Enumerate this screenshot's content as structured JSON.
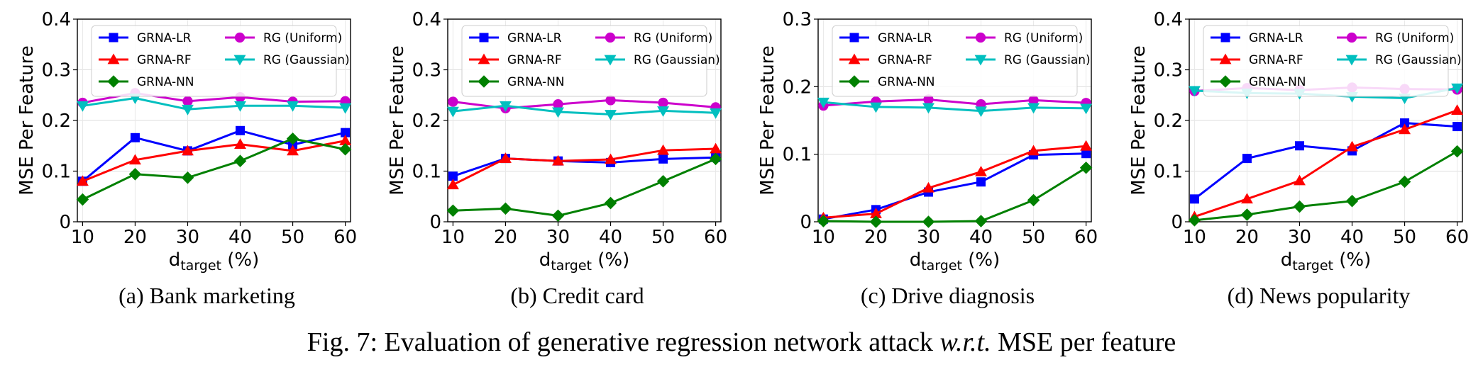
{
  "figure": {
    "caption": {
      "prefix": "Fig. 7: Evaluation of generative regression network attack ",
      "italic": "w.r.t.",
      "suffix": " MSE per feature"
    }
  },
  "chart_data": [
    {
      "type": "line",
      "caption": "(a) Bank marketing",
      "ylabel": "MSE Per Feature",
      "xlabel_main": "d",
      "xlabel_sub": "target",
      "xlabel_suffix": " (%)",
      "x": [
        10,
        20,
        30,
        40,
        50,
        60
      ],
      "xlim": [
        9,
        61
      ],
      "ylim": [
        0,
        0.4
      ],
      "yticks": [
        0,
        0.1,
        0.2,
        0.3,
        0.4
      ],
      "yticklabels": [
        "0",
        "0.1",
        "0.2",
        "0.3",
        "0.4"
      ],
      "grid": true,
      "legend": "top",
      "series": [
        {
          "name": "GRNA-LR",
          "color": "#0000ff",
          "marker": "square",
          "values": [
            0.08,
            0.166,
            0.14,
            0.18,
            0.152,
            0.176
          ]
        },
        {
          "name": "GRNA-RF",
          "color": "#ff0000",
          "marker": "triangle-up",
          "values": [
            0.08,
            0.122,
            0.14,
            0.153,
            0.14,
            0.16
          ]
        },
        {
          "name": "GRNA-NN",
          "color": "#008000",
          "marker": "diamond",
          "values": [
            0.044,
            0.094,
            0.087,
            0.12,
            0.164,
            0.143
          ]
        },
        {
          "name": "RG (Uniform)",
          "color": "#cc00cc",
          "marker": "circle",
          "values": [
            0.235,
            0.254,
            0.238,
            0.246,
            0.237,
            0.238
          ]
        },
        {
          "name": "RG (Gaussian)",
          "color": "#00bfbf",
          "marker": "triangle-down",
          "values": [
            0.229,
            0.244,
            0.222,
            0.229,
            0.229,
            0.225
          ]
        }
      ]
    },
    {
      "type": "line",
      "caption": "(b) Credit card",
      "ylabel": "MSE Per Feature",
      "xlabel_main": "d",
      "xlabel_sub": "target",
      "xlabel_suffix": " (%)",
      "x": [
        10,
        20,
        30,
        40,
        50,
        60
      ],
      "xlim": [
        9,
        61
      ],
      "ylim": [
        0,
        0.4
      ],
      "yticks": [
        0,
        0.1,
        0.2,
        0.3,
        0.4
      ],
      "yticklabels": [
        "0",
        "0.1",
        "0.2",
        "0.3",
        "0.4"
      ],
      "grid": true,
      "legend": "top",
      "series": [
        {
          "name": "GRNA-LR",
          "color": "#0000ff",
          "marker": "square",
          "values": [
            0.09,
            0.125,
            0.12,
            0.117,
            0.124,
            0.127
          ]
        },
        {
          "name": "GRNA-RF",
          "color": "#ff0000",
          "marker": "triangle-up",
          "values": [
            0.073,
            0.125,
            0.12,
            0.123,
            0.141,
            0.144
          ]
        },
        {
          "name": "GRNA-NN",
          "color": "#008000",
          "marker": "diamond",
          "values": [
            0.022,
            0.026,
            0.012,
            0.037,
            0.08,
            0.124
          ]
        },
        {
          "name": "RG (Uniform)",
          "color": "#cc00cc",
          "marker": "circle",
          "values": [
            0.237,
            0.224,
            0.232,
            0.24,
            0.235,
            0.226
          ]
        },
        {
          "name": "RG (Gaussian)",
          "color": "#00bfbf",
          "marker": "triangle-down",
          "values": [
            0.218,
            0.229,
            0.217,
            0.212,
            0.219,
            0.215
          ]
        }
      ]
    },
    {
      "type": "line",
      "caption": "(c) Drive diagnosis",
      "ylabel": "MSE Per Feature",
      "xlabel_main": "d",
      "xlabel_sub": "target",
      "xlabel_suffix": " (%)",
      "x": [
        10,
        20,
        30,
        40,
        50,
        60
      ],
      "xlim": [
        9,
        61
      ],
      "ylim": [
        0,
        0.3
      ],
      "yticks": [
        0,
        0.1,
        0.2,
        0.3
      ],
      "yticklabels": [
        "0",
        "0.1",
        "0.2",
        "0.3"
      ],
      "grid": true,
      "legend": "top",
      "series": [
        {
          "name": "GRNA-LR",
          "color": "#0000ff",
          "marker": "square",
          "values": [
            0.004,
            0.018,
            0.044,
            0.059,
            0.099,
            0.101
          ]
        },
        {
          "name": "GRNA-RF",
          "color": "#ff0000",
          "marker": "triangle-up",
          "values": [
            0.006,
            0.012,
            0.05,
            0.074,
            0.105,
            0.112
          ]
        },
        {
          "name": "GRNA-NN",
          "color": "#008000",
          "marker": "diamond",
          "values": [
            0.001,
            0.0,
            0.0,
            0.001,
            0.032,
            0.08
          ]
        },
        {
          "name": "RG (Uniform)",
          "color": "#cc00cc",
          "marker": "circle",
          "values": [
            0.172,
            0.178,
            0.181,
            0.174,
            0.18,
            0.176
          ]
        },
        {
          "name": "RG (Gaussian)",
          "color": "#00bfbf",
          "marker": "triangle-down",
          "values": [
            0.177,
            0.17,
            0.169,
            0.164,
            0.169,
            0.168
          ]
        }
      ]
    },
    {
      "type": "line",
      "caption": "(d) News popularity",
      "ylabel": "MSE Per Feature",
      "xlabel_main": "d",
      "xlabel_sub": "target",
      "xlabel_suffix": " (%)",
      "x": [
        10,
        20,
        30,
        40,
        50,
        60
      ],
      "xlim": [
        9,
        61
      ],
      "ylim": [
        0,
        0.4
      ],
      "yticks": [
        0,
        0.1,
        0.2,
        0.3,
        0.4
      ],
      "yticklabels": [
        "0",
        "0.1",
        "0.2",
        "0.3",
        "0.4"
      ],
      "grid": true,
      "legend": "top",
      "series": [
        {
          "name": "GRNA-LR",
          "color": "#0000ff",
          "marker": "square",
          "values": [
            0.045,
            0.125,
            0.15,
            0.14,
            0.195,
            0.188
          ]
        },
        {
          "name": "GRNA-RF",
          "color": "#ff0000",
          "marker": "triangle-up",
          "values": [
            0.01,
            0.045,
            0.081,
            0.148,
            0.182,
            0.22
          ]
        },
        {
          "name": "GRNA-NN",
          "color": "#008000",
          "marker": "diamond",
          "values": [
            0.003,
            0.014,
            0.03,
            0.041,
            0.079,
            0.139
          ]
        },
        {
          "name": "RG (Uniform)",
          "color": "#cc00cc",
          "marker": "circle",
          "values": [
            0.258,
            0.264,
            0.26,
            0.265,
            0.262,
            0.261
          ]
        },
        {
          "name": "RG (Gaussian)",
          "color": "#00bfbf",
          "marker": "triangle-down",
          "values": [
            0.259,
            0.254,
            0.253,
            0.247,
            0.244,
            0.264
          ]
        }
      ]
    }
  ]
}
